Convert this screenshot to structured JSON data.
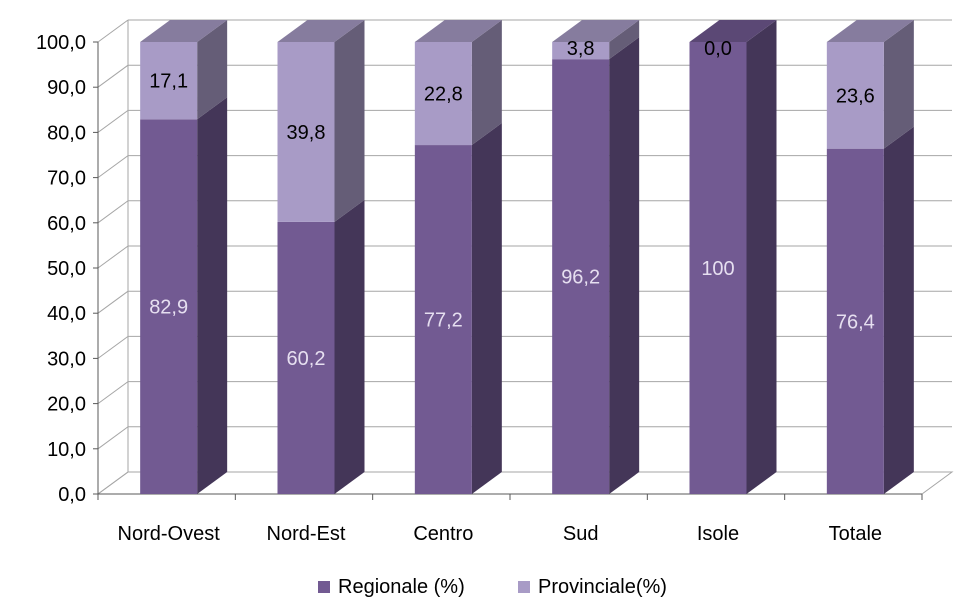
{
  "chart_data": {
    "type": "bar",
    "stacked": true,
    "three_d": true,
    "categories": [
      "Nord-Ovest",
      "Nord-Est",
      "Centro",
      "Sud",
      "Isole",
      "Totale"
    ],
    "series": [
      {
        "name": "Regionale (%)",
        "values": [
          82.9,
          60.2,
          77.2,
          96.2,
          100,
          76.4
        ],
        "labels": [
          "82,9",
          "60,2",
          "77,2",
          "96,2",
          "100",
          "76,4"
        ],
        "color": "#725a92",
        "label_color": "#e6dff0"
      },
      {
        "name": "Provinciale(%)",
        "values": [
          17.1,
          39.8,
          22.8,
          3.8,
          0.0,
          23.6
        ],
        "labels": [
          "17,1",
          "39,8",
          "22,8",
          "3,8",
          "0,0",
          "23,6"
        ],
        "color": "#a89bc6",
        "label_color": "#000000"
      }
    ],
    "ylim": [
      0,
      100
    ],
    "yticks": [
      "0,0",
      "10,0",
      "20,0",
      "30,0",
      "40,0",
      "50,0",
      "60,0",
      "70,0",
      "80,0",
      "90,0",
      "100,0"
    ],
    "grid": true,
    "legend_position": "bottom",
    "title": "",
    "xlabel": "",
    "ylabel": ""
  }
}
